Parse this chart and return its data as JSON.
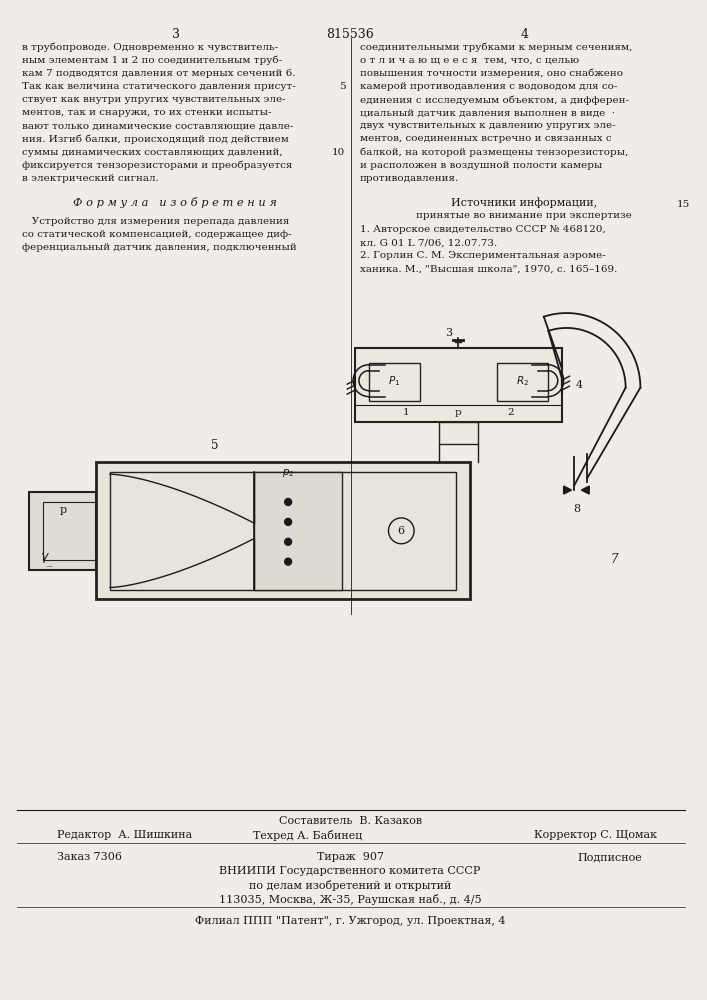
{
  "page_width": 7.07,
  "page_height": 10.0,
  "bg_color": "#f0ede8",
  "text_color": "#1a1a1a",
  "patent_number": "815536",
  "col1_header": "3",
  "col2_header": "4",
  "col1_text": [
    "в трубопроводе. Одновременно к чувствитель-",
    "ным элементам 1 и 2 по соединительным труб-",
    "кам 7 подводятся давления от мерных сечений 6.",
    "Так как величина статического давления присут-",
    "ствует как внутри упругих чувствительных эле-",
    "ментов, так и снаружи, то их стенки испыты-",
    "вают только динамические составляющие давле-",
    "ния. Изгиб балки, происходящий под действием",
    "суммы динамических составляющих давлений,",
    "фиксируется тензорезисторами и преобразуется",
    "в электрический сигнал."
  ],
  "col1_formula_title": "Ф о р м у л а   и з о б р е т е н и я",
  "col1_formula_text": [
    "   Устройство для измерения перепада давления",
    "со статической компенсацией, содержащее диф-",
    "ференциальный датчик давления, подключенный"
  ],
  "col2_text": [
    "соединительными трубками к мерным сечениям,",
    "о т л и ч а ю щ е е с я  тем, что, с целью",
    "повышения точности измерения, оно снабжено",
    "камерой противодавления с водоводом для со-",
    "единения с исследуемым объектом, а дифферен-",
    "циальный датчик давления выполнен в виде  ·",
    "двух чувствительных к давлению упругих эле-",
    "ментов, соединенных встречно и связанных с",
    "балкой, на которой размещены тензорезисторы,",
    "и расположен в воздушной полости камеры",
    "противодавления."
  ],
  "col2_sources_title": "Источники информации,",
  "col2_sources_subtitle": "принятые во внимание при экспертизе",
  "col2_source1": "1. Авторское свидетельство СССР № 468120,",
  "col2_source1b": "кл. G 01 L 7/06, 12.07.73.",
  "col2_source2": "2. Горлин С. М. Экспериментальная аэроме-",
  "col2_source2b": "ханика. М., \"Высшая школа\", 1970, с. 165–169.",
  "footer_composer": "Составитель  В. Казаков",
  "footer_editor": "Редактор  А. Шишкина",
  "footer_tech": "Техред А. Бабинец",
  "footer_corrector": "Корректор С. Щомак",
  "footer_order": "Заказ 7306",
  "footer_tirage": "Тираж  907",
  "footer_podpisnoe": "Подписное",
  "footer_vniip1": "ВНИИПИ Государственного комитета СССР",
  "footer_vniip2": "по делам изобретений и открытий",
  "footer_vniip3": "113035, Москва, Ж-35, Раушская наб., д. 4/5",
  "footer_filial": "Филиал ППП \"Патент\", г. Ужгород, ул. Проектная, 4"
}
